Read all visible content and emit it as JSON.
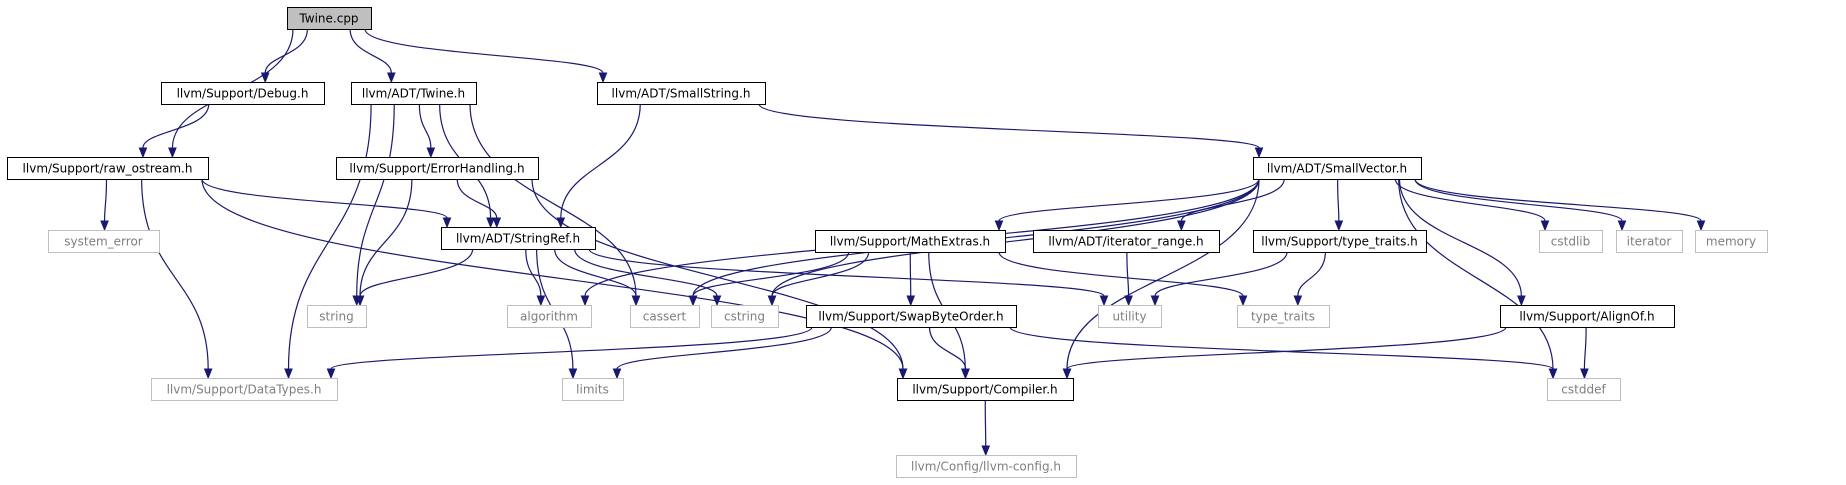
{
  "colors": {
    "edge": "#191970",
    "root_fill": "#bfbfbf",
    "node_border": "#000000",
    "external_border": "#bfbfbf",
    "external_text": "#7f7f7f",
    "text": "#000000"
  },
  "nodes": {
    "twine_cpp": {
      "label": "Twine.cpp",
      "kind": "root"
    },
    "raw_ostream": {
      "label": "llvm/Support/raw_ostream.h",
      "kind": "local"
    },
    "debug_h": {
      "label": "llvm/Support/Debug.h",
      "kind": "local"
    },
    "adt_twine": {
      "label": "llvm/ADT/Twine.h",
      "kind": "local"
    },
    "small_string": {
      "label": "llvm/ADT/SmallString.h",
      "kind": "local"
    },
    "small_vector": {
      "label": "llvm/ADT/SmallVector.h",
      "kind": "local"
    },
    "error_handling": {
      "label": "llvm/Support/ErrorHandling.h",
      "kind": "local"
    },
    "string_ref": {
      "label": "llvm/ADT/StringRef.h",
      "kind": "local"
    },
    "math_extras": {
      "label": "llvm/Support/MathExtras.h",
      "kind": "local"
    },
    "iterator_range": {
      "label": "llvm/ADT/iterator_range.h",
      "kind": "local"
    },
    "type_traits_h": {
      "label": "llvm/Support/type_traits.h",
      "kind": "local"
    },
    "swap_byte_order": {
      "label": "llvm/Support/SwapByteOrder.h",
      "kind": "local"
    },
    "align_of": {
      "label": "llvm/Support/AlignOf.h",
      "kind": "local"
    },
    "compiler_h": {
      "label": "llvm/Support/Compiler.h",
      "kind": "local"
    },
    "system_error": {
      "label": "system_error",
      "kind": "external"
    },
    "string": {
      "label": "string",
      "kind": "external"
    },
    "algorithm": {
      "label": "algorithm",
      "kind": "external"
    },
    "cassert": {
      "label": "cassert",
      "kind": "external"
    },
    "cstring": {
      "label": "cstring",
      "kind": "external"
    },
    "utility": {
      "label": "utility",
      "kind": "external"
    },
    "type_traits": {
      "label": "type_traits",
      "kind": "external"
    },
    "cstdlib": {
      "label": "cstdlib",
      "kind": "external"
    },
    "iterator": {
      "label": "iterator",
      "kind": "external"
    },
    "memory": {
      "label": "memory",
      "kind": "external"
    },
    "data_types": {
      "label": "llvm/Support/DataTypes.h",
      "kind": "external"
    },
    "limits": {
      "label": "limits",
      "kind": "external"
    },
    "cstddef": {
      "label": "cstddef",
      "kind": "external"
    },
    "llvm_config": {
      "label": "llvm/Config/llvm-config.h",
      "kind": "external"
    }
  },
  "edges": [
    [
      "twine_cpp",
      "raw_ostream"
    ],
    [
      "twine_cpp",
      "debug_h"
    ],
    [
      "twine_cpp",
      "adt_twine"
    ],
    [
      "twine_cpp",
      "small_string"
    ],
    [
      "debug_h",
      "raw_ostream"
    ],
    [
      "raw_ostream",
      "system_error"
    ],
    [
      "raw_ostream",
      "data_types"
    ],
    [
      "raw_ostream",
      "string_ref"
    ],
    [
      "raw_ostream",
      "compiler_h"
    ],
    [
      "adt_twine",
      "error_handling"
    ],
    [
      "adt_twine",
      "string_ref"
    ],
    [
      "adt_twine",
      "string"
    ],
    [
      "adt_twine",
      "data_types"
    ],
    [
      "adt_twine",
      "cassert"
    ],
    [
      "small_string",
      "string_ref"
    ],
    [
      "small_string",
      "small_vector"
    ],
    [
      "error_handling",
      "string_ref"
    ],
    [
      "error_handling",
      "string"
    ],
    [
      "error_handling",
      "compiler_h"
    ],
    [
      "string_ref",
      "string"
    ],
    [
      "string_ref",
      "algorithm"
    ],
    [
      "string_ref",
      "cassert"
    ],
    [
      "string_ref",
      "cstring"
    ],
    [
      "string_ref",
      "limits"
    ],
    [
      "string_ref",
      "utility"
    ],
    [
      "small_vector",
      "algorithm"
    ],
    [
      "small_vector",
      "cassert"
    ],
    [
      "small_vector",
      "cstring"
    ],
    [
      "small_vector",
      "math_extras"
    ],
    [
      "small_vector",
      "iterator_range"
    ],
    [
      "small_vector",
      "type_traits_h"
    ],
    [
      "small_vector",
      "compiler_h"
    ],
    [
      "small_vector",
      "align_of"
    ],
    [
      "small_vector",
      "cstdlib"
    ],
    [
      "small_vector",
      "iterator"
    ],
    [
      "small_vector",
      "memory"
    ],
    [
      "small_vector",
      "cstddef"
    ],
    [
      "math_extras",
      "cassert"
    ],
    [
      "math_extras",
      "cstring"
    ],
    [
      "math_extras",
      "swap_byte_order"
    ],
    [
      "math_extras",
      "compiler_h"
    ],
    [
      "math_extras",
      "type_traits"
    ],
    [
      "iterator_range",
      "utility"
    ],
    [
      "type_traits_h",
      "utility"
    ],
    [
      "type_traits_h",
      "type_traits"
    ],
    [
      "swap_byte_order",
      "data_types"
    ],
    [
      "swap_byte_order",
      "limits"
    ],
    [
      "swap_byte_order",
      "compiler_h"
    ],
    [
      "swap_byte_order",
      "cstddef"
    ],
    [
      "align_of",
      "compiler_h"
    ],
    [
      "align_of",
      "cstddef"
    ],
    [
      "compiler_h",
      "llvm_config"
    ]
  ]
}
